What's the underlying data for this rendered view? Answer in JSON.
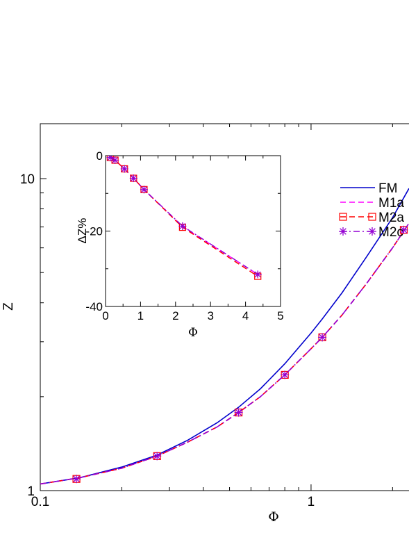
{
  "chart_data": [
    {
      "type": "line",
      "xlabel": "Φ",
      "ylabel": "Z",
      "xscale": "log",
      "yscale": "log",
      "xlim": [
        0.1,
        2.3
      ],
      "ylim": [
        1,
        15
      ],
      "xticks": [
        {
          "value": 0.1,
          "label": "0.1"
        },
        {
          "value": 1,
          "label": "1"
        }
      ],
      "yticks": [
        {
          "value": 1,
          "label": "1"
        },
        {
          "value": 10,
          "label": "10"
        }
      ],
      "legend": {
        "position": "right",
        "entries": [
          "FM",
          "M1a",
          "M2a",
          "M2c"
        ]
      },
      "series": [
        {
          "name": "FM",
          "color": "#0000cc",
          "style": "solid",
          "marker": "none",
          "x": [
            0.1,
            0.14,
            0.2,
            0.27,
            0.35,
            0.45,
            0.54,
            0.65,
            0.8,
            1.0,
            1.1,
            1.3,
            1.6,
            2.0,
            2.3
          ],
          "y": [
            1.05,
            1.1,
            1.19,
            1.3,
            1.45,
            1.65,
            1.85,
            2.12,
            2.55,
            3.2,
            3.55,
            4.3,
            5.6,
            7.5,
            9.3
          ]
        },
        {
          "name": "M1a",
          "color": "#ff00ff",
          "style": "dashed",
          "marker": "none",
          "x": [
            0.1,
            0.14,
            0.2,
            0.27,
            0.35,
            0.45,
            0.54,
            0.65,
            0.8,
            1.0,
            1.1,
            1.3,
            1.6,
            2.0,
            2.3
          ],
          "y": [
            1.05,
            1.1,
            1.18,
            1.29,
            1.43,
            1.6,
            1.78,
            2.0,
            2.35,
            2.85,
            3.1,
            3.65,
            4.6,
            6.0,
            7.2
          ]
        },
        {
          "name": "M2a",
          "color": "#ff0000",
          "style": "dashed",
          "marker": "square",
          "x": [
            0.1,
            0.14,
            0.2,
            0.27,
            0.35,
            0.45,
            0.54,
            0.65,
            0.8,
            1.0,
            1.1,
            1.3,
            1.6,
            2.0,
            2.3
          ],
          "y": [
            1.05,
            1.1,
            1.18,
            1.29,
            1.43,
            1.6,
            1.78,
            2.0,
            2.35,
            2.85,
            3.1,
            3.65,
            4.6,
            6.0,
            7.2
          ],
          "marker_x": [
            0.136,
            0.27,
            0.54,
            0.8,
            1.1,
            2.2
          ],
          "marker_y": [
            1.09,
            1.29,
            1.78,
            2.35,
            3.1,
            6.85
          ]
        },
        {
          "name": "M2c",
          "color": "#9400d3",
          "style": "dashdot",
          "marker": "star",
          "x": [
            0.1,
            0.14,
            0.2,
            0.27,
            0.35,
            0.45,
            0.54,
            0.65,
            0.8,
            1.0,
            1.1,
            1.3,
            1.6,
            2.0,
            2.3
          ],
          "y": [
            1.05,
            1.1,
            1.18,
            1.29,
            1.43,
            1.6,
            1.78,
            2.0,
            2.35,
            2.85,
            3.1,
            3.65,
            4.6,
            6.0,
            7.2
          ],
          "marker_x": [
            0.136,
            0.27,
            0.54,
            0.8,
            1.1,
            2.2
          ],
          "marker_y": [
            1.09,
            1.29,
            1.78,
            2.35,
            3.1,
            6.85
          ]
        }
      ]
    },
    {
      "type": "line",
      "xlabel": "Φ",
      "ylabel": "ΔZ%",
      "xlim": [
        0,
        5
      ],
      "ylim": [
        -40,
        0
      ],
      "xticks": [
        {
          "value": 0,
          "label": "0"
        },
        {
          "value": 1,
          "label": "1"
        },
        {
          "value": 2,
          "label": "2"
        },
        {
          "value": 3,
          "label": "3"
        },
        {
          "value": 4,
          "label": "4"
        },
        {
          "value": 5,
          "label": "5"
        }
      ],
      "yticks": [
        {
          "value": 0,
          "label": "0"
        },
        {
          "value": -20,
          "label": "-20"
        },
        {
          "value": -40,
          "label": "-40"
        }
      ],
      "series": [
        {
          "name": "M1a",
          "color": "#ff00ff",
          "style": "dashed",
          "marker": "none",
          "x": [
            0.136,
            0.27,
            0.54,
            0.8,
            1.1,
            2.2,
            4.35
          ],
          "y": [
            -0.5,
            -1.2,
            -3.5,
            -6.0,
            -9.0,
            -18.8,
            -31.5
          ]
        },
        {
          "name": "M2a",
          "color": "#ff0000",
          "style": "dashed",
          "marker": "square",
          "x": [
            0.136,
            0.27,
            0.54,
            0.8,
            1.1,
            2.2,
            4.35
          ],
          "y": [
            -0.5,
            -1.2,
            -3.5,
            -6.0,
            -9.0,
            -19.0,
            -32.0
          ]
        },
        {
          "name": "M2c",
          "color": "#9400d3",
          "style": "dashdot",
          "marker": "star",
          "x": [
            0.136,
            0.27,
            0.54,
            0.8,
            1.1,
            2.2,
            4.35
          ],
          "y": [
            -0.5,
            -1.2,
            -3.5,
            -6.0,
            -9.0,
            -18.7,
            -31.5
          ]
        }
      ]
    }
  ]
}
